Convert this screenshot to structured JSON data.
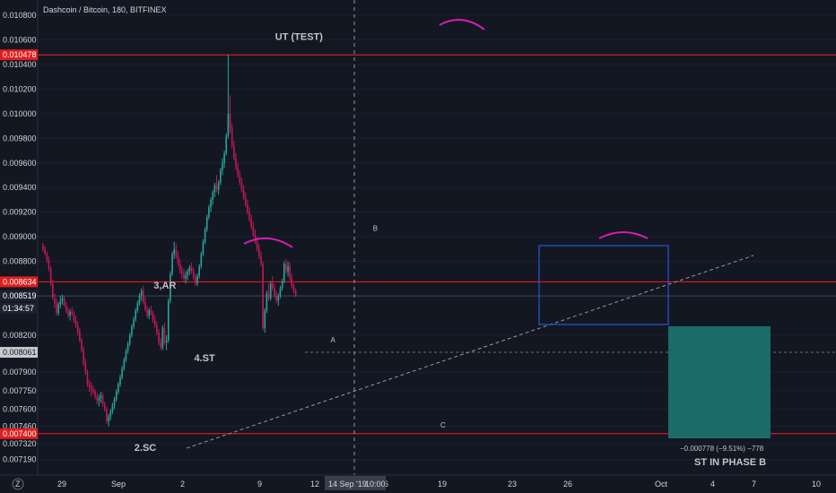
{
  "header": {
    "title": "Dashcoin / Bitcoin, 180, BITFINEX"
  },
  "colors": {
    "background": "#131722",
    "up": "#26a69a",
    "down": "#c2185b",
    "resistance_line": "#ff1a1a",
    "price_badge": "#e01e1e",
    "arc": "#d81bb7",
    "box_border": "#2962ff",
    "target_fill": "#1b6b68",
    "crosshair": "#9598a1"
  },
  "chart_data": {
    "type": "candlestick",
    "instrument": "Dashcoin / Bitcoin, 180, BITFINEX",
    "y_range": [
      0.0071,
      0.0108
    ],
    "y_ticks": [
      "0.010800",
      "0.010600",
      "0.010400",
      "0.010200",
      "0.010000",
      "0.009800",
      "0.009600",
      "0.009400",
      "0.009200",
      "0.009000",
      "0.008800",
      "0.008200",
      "0.007900",
      "0.007750",
      "0.007600",
      "0.007460",
      "0.007320",
      "0.007190"
    ],
    "x_ticks": [
      "29",
      "Sep",
      "2",
      "5",
      "9",
      "12",
      "6",
      "19",
      "23",
      "26",
      "Oct",
      "4",
      "7",
      "10"
    ],
    "x_crosshair_label": "14 Sep '19",
    "x_crosshair_time": "10:00",
    "price_badges": [
      {
        "label": "0.010478",
        "value": 0.010478,
        "style": "red"
      },
      {
        "label": "0.008634",
        "value": 0.008634,
        "style": "red"
      },
      {
        "label": "0.008519",
        "value": 0.008519,
        "style": "dark"
      },
      {
        "label": "01:34:57",
        "value": 0.00842,
        "style": "dark"
      },
      {
        "label": "0.008061",
        "value": 0.008061,
        "style": "grey"
      },
      {
        "label": "0.007400",
        "value": 0.0074,
        "style": "red"
      }
    ],
    "horizontal_levels": [
      0.010478,
      0.008634,
      0.0074
    ],
    "close_price": 0.008519,
    "dashed_level": 0.008061,
    "annotations": [
      {
        "text": "UT (TEST)",
        "bar": 125,
        "value": 0.0106
      },
      {
        "text": "3,AR",
        "bar": 62,
        "value": 0.00858
      },
      {
        "text": "2.SC",
        "bar": 52,
        "value": 0.00726
      },
      {
        "text": "4.ST",
        "bar": 83,
        "value": 0.00799
      },
      {
        "text": "A",
        "bar": 150,
        "value": 0.00814
      },
      {
        "text": "B",
        "bar": 172,
        "value": 0.00905
      },
      {
        "text": "C",
        "bar": 207,
        "value": 0.00745
      }
    ],
    "measure_label": "−0.000778 (−9.51%) −778",
    "phase_label": "ST IN PHASE B",
    "candles": [
      [
        8930,
        8950,
        8880,
        8900
      ],
      [
        8900,
        8920,
        8850,
        8860
      ],
      [
        8860,
        8880,
        8790,
        8810
      ],
      [
        8810,
        8840,
        8720,
        8740
      ],
      [
        8740,
        8760,
        8600,
        8620
      ],
      [
        8620,
        8650,
        8490,
        8500
      ],
      [
        8500,
        8540,
        8420,
        8460
      ],
      [
        8460,
        8500,
        8360,
        8380
      ],
      [
        8380,
        8470,
        8360,
        8450
      ],
      [
        8450,
        8520,
        8420,
        8480
      ],
      [
        8480,
        8530,
        8450,
        8500
      ],
      [
        8500,
        8520,
        8430,
        8440
      ],
      [
        8440,
        8470,
        8380,
        8400
      ],
      [
        8400,
        8430,
        8340,
        8360
      ],
      [
        8360,
        8410,
        8320,
        8390
      ],
      [
        8390,
        8430,
        8360,
        8380
      ],
      [
        8380,
        8400,
        8300,
        8320
      ],
      [
        8320,
        8360,
        8260,
        8280
      ],
      [
        8280,
        8310,
        8200,
        8230
      ],
      [
        8230,
        8260,
        8140,
        8160
      ],
      [
        8160,
        8180,
        8060,
        8080
      ],
      [
        8080,
        8110,
        7950,
        7980
      ],
      [
        7980,
        8010,
        7880,
        7900
      ],
      [
        7900,
        7920,
        7780,
        7800
      ],
      [
        7800,
        7840,
        7740,
        7780
      ],
      [
        7780,
        7820,
        7700,
        7760
      ],
      [
        7760,
        7790,
        7720,
        7740
      ],
      [
        7740,
        7760,
        7680,
        7700
      ],
      [
        7700,
        7730,
        7640,
        7670
      ],
      [
        7670,
        7720,
        7620,
        7690
      ],
      [
        7690,
        7740,
        7650,
        7710
      ],
      [
        7710,
        7730,
        7620,
        7640
      ],
      [
        7640,
        7660,
        7580,
        7600
      ],
      [
        7600,
        7620,
        7480,
        7500
      ],
      [
        7500,
        7560,
        7460,
        7540
      ],
      [
        7540,
        7600,
        7510,
        7580
      ],
      [
        7580,
        7650,
        7560,
        7630
      ],
      [
        7630,
        7700,
        7600,
        7680
      ],
      [
        7680,
        7760,
        7660,
        7740
      ],
      [
        7740,
        7820,
        7720,
        7800
      ],
      [
        7800,
        7880,
        7780,
        7860
      ],
      [
        7860,
        7950,
        7840,
        7930
      ],
      [
        7930,
        8020,
        7910,
        8000
      ],
      [
        8000,
        8090,
        7980,
        8070
      ],
      [
        8070,
        8150,
        8050,
        8130
      ],
      [
        8130,
        8220,
        8110,
        8200
      ],
      [
        8200,
        8290,
        8180,
        8270
      ],
      [
        8270,
        8350,
        8250,
        8330
      ],
      [
        8330,
        8420,
        8310,
        8400
      ],
      [
        8400,
        8480,
        8380,
        8460
      ],
      [
        8460,
        8540,
        8440,
        8520
      ],
      [
        8520,
        8580,
        8480,
        8560
      ],
      [
        8560,
        8600,
        8450,
        8470
      ],
      [
        8470,
        8510,
        8390,
        8410
      ],
      [
        8410,
        8440,
        8340,
        8360
      ],
      [
        8360,
        8420,
        8330,
        8400
      ],
      [
        8400,
        8440,
        8360,
        8380
      ],
      [
        8380,
        8400,
        8300,
        8320
      ],
      [
        8320,
        8360,
        8260,
        8280
      ],
      [
        8280,
        8310,
        8200,
        8220
      ],
      [
        8220,
        8250,
        8120,
        8140
      ],
      [
        8140,
        8180,
        8080,
        8100
      ],
      [
        8100,
        8280,
        8080,
        8260
      ],
      [
        8260,
        8300,
        8120,
        8140
      ],
      [
        8140,
        8200,
        8080,
        8160
      ],
      [
        8160,
        8500,
        8140,
        8480
      ],
      [
        8480,
        8720,
        8460,
        8700
      ],
      [
        8700,
        8880,
        8680,
        8860
      ],
      [
        8860,
        8960,
        8820,
        8900
      ],
      [
        8900,
        8940,
        8820,
        8840
      ],
      [
        8840,
        8880,
        8760,
        8780
      ],
      [
        8780,
        8820,
        8700,
        8720
      ],
      [
        8720,
        8760,
        8660,
        8700
      ],
      [
        8700,
        8740,
        8640,
        8660
      ],
      [
        8660,
        8720,
        8620,
        8690
      ],
      [
        8690,
        8740,
        8650,
        8720
      ],
      [
        8720,
        8770,
        8690,
        8750
      ],
      [
        8750,
        8790,
        8700,
        8720
      ],
      [
        8720,
        8750,
        8650,
        8670
      ],
      [
        8670,
        8700,
        8600,
        8620
      ],
      [
        8620,
        8700,
        8600,
        8680
      ],
      [
        8680,
        8780,
        8660,
        8760
      ],
      [
        8760,
        8880,
        8740,
        8860
      ],
      [
        8860,
        8980,
        8840,
        8960
      ],
      [
        8960,
        9080,
        8940,
        9060
      ],
      [
        9060,
        9180,
        9040,
        9160
      ],
      [
        9160,
        9260,
        9140,
        9240
      ],
      [
        9240,
        9320,
        9200,
        9300
      ],
      [
        9300,
        9380,
        9260,
        9360
      ],
      [
        9360,
        9440,
        9320,
        9420
      ],
      [
        9420,
        9500,
        9360,
        9380
      ],
      [
        9380,
        9460,
        9340,
        9440
      ],
      [
        9440,
        9560,
        9420,
        9540
      ],
      [
        9540,
        9640,
        9500,
        9600
      ],
      [
        9600,
        9700,
        9560,
        9680
      ],
      [
        9680,
        9840,
        9660,
        9820
      ],
      [
        9820,
        10480,
        9800,
        10000
      ],
      [
        10000,
        10150,
        9840,
        9880
      ],
      [
        9880,
        9920,
        9720,
        9740
      ],
      [
        9740,
        9780,
        9620,
        9640
      ],
      [
        9640,
        9680,
        9540,
        9560
      ],
      [
        9560,
        9600,
        9480,
        9500
      ],
      [
        9500,
        9540,
        9420,
        9440
      ],
      [
        9440,
        9480,
        9360,
        9380
      ],
      [
        9380,
        9420,
        9300,
        9320
      ],
      [
        9320,
        9360,
        9240,
        9260
      ],
      [
        9260,
        9300,
        9180,
        9200
      ],
      [
        9200,
        9240,
        9120,
        9140
      ],
      [
        9140,
        9180,
        9060,
        9080
      ],
      [
        9080,
        9120,
        9000,
        9020
      ],
      [
        9020,
        9060,
        8940,
        8960
      ],
      [
        8960,
        9000,
        8880,
        8900
      ],
      [
        8900,
        8940,
        8820,
        8840
      ],
      [
        8840,
        8880,
        8760,
        8780
      ],
      [
        8780,
        8800,
        8240,
        8260
      ],
      [
        8260,
        8420,
        8220,
        8400
      ],
      [
        8400,
        8560,
        8380,
        8540
      ],
      [
        8540,
        8620,
        8480,
        8500
      ],
      [
        8500,
        8640,
        8480,
        8620
      ],
      [
        8620,
        8680,
        8560,
        8580
      ],
      [
        8580,
        8620,
        8500,
        8520
      ],
      [
        8520,
        8560,
        8460,
        8480
      ],
      [
        8480,
        8540,
        8440,
        8520
      ],
      [
        8520,
        8600,
        8500,
        8580
      ],
      [
        8580,
        8660,
        8560,
        8640
      ],
      [
        8640,
        8800,
        8620,
        8780
      ],
      [
        8780,
        8820,
        8700,
        8720
      ],
      [
        8720,
        8800,
        8680,
        8760
      ],
      [
        8760,
        8790,
        8640,
        8660
      ],
      [
        8660,
        8700,
        8580,
        8600
      ],
      [
        8600,
        8620,
        8540,
        8560
      ],
      [
        8560,
        8580,
        8510,
        8519
      ]
    ]
  }
}
